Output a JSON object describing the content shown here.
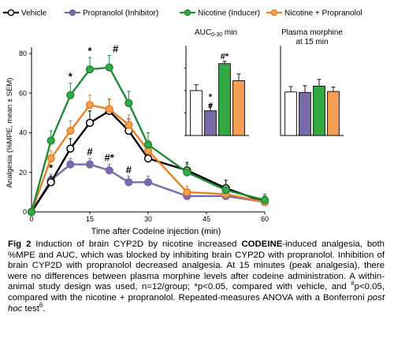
{
  "chart_data": [
    {
      "id": "main",
      "type": "line",
      "xlabel": "Time after Codeine injection (min)",
      "ylabel": "Analgesia (%MPE, mean ± SEM)",
      "xlim": [
        0,
        60
      ],
      "ylim": [
        0,
        80
      ],
      "xticks": [
        0,
        15,
        30,
        45,
        60
      ],
      "yticks": [
        0,
        20,
        40,
        60,
        80
      ],
      "grid": false,
      "legend_position": "top",
      "x": [
        0,
        5,
        10,
        15,
        20,
        25,
        30,
        40,
        50,
        60
      ],
      "series": [
        {
          "name": "Vehicle",
          "color": "#000000",
          "fill": "#ffffff",
          "values": [
            0,
            15,
            32,
            45,
            51,
            41,
            27,
            21,
            12,
            5
          ],
          "errors": [
            1,
            3,
            5,
            6,
            6,
            6,
            5,
            4,
            4,
            3
          ]
        },
        {
          "name": "Propranolol (Inhibitor)",
          "color": "#7a6ba8",
          "fill": "#7a6ba8",
          "values": [
            0,
            16,
            24,
            24,
            21,
            15,
            15,
            8,
            8,
            5
          ],
          "errors": [
            1,
            3,
            3,
            3,
            3,
            3,
            3,
            2,
            2,
            2
          ]
        },
        {
          "name": "Nicotine (Inducer)",
          "color": "#22893a",
          "fill": "#33aa44",
          "values": [
            0,
            36,
            59,
            72,
            73,
            55,
            34,
            20,
            11,
            6
          ],
          "errors": [
            1,
            5,
            6,
            6,
            6,
            6,
            6,
            4,
            3,
            3
          ]
        },
        {
          "name": "Nicotine + Propranolol",
          "color": "#e8822a",
          "fill": "#f0a050",
          "values": [
            0,
            27,
            41,
            54,
            52,
            44,
            31,
            10,
            9,
            5
          ],
          "errors": [
            1,
            4,
            5,
            5,
            5,
            5,
            5,
            3,
            3,
            2
          ]
        }
      ],
      "annotations": [
        {
          "series": "Nicotine (Inducer)",
          "x": 10,
          "text": "*"
        },
        {
          "series": "Nicotine (Inducer)",
          "x": 15,
          "text": "*"
        },
        {
          "series": "Nicotine (Inducer)",
          "x": 20,
          "text": "#"
        },
        {
          "series": "Propranolol (Inhibitor)",
          "x": 5,
          "text": "*"
        },
        {
          "series": "Propranolol (Inhibitor)",
          "x": 15,
          "text": "#"
        },
        {
          "series": "Propranolol (Inhibitor)",
          "x": 20,
          "text": "#*"
        },
        {
          "series": "Propranolol (Inhibitor)",
          "x": 25,
          "text": "#"
        }
      ]
    },
    {
      "id": "auc",
      "type": "bar",
      "title_main": "AUC",
      "title_sub": "0-30",
      "title_tail": " min",
      "categories": [
        "Vehicle",
        "Propranolol (Inhibitor)",
        "Nicotine (Inducer)",
        "Nicotine + Propranolol"
      ],
      "values": [
        1.0,
        0.55,
        1.6,
        1.22
      ],
      "errors": [
        0.13,
        0.13,
        0.05,
        0.15
      ],
      "colors": [
        "#ffffff",
        "#7a6ba8",
        "#33aa44",
        "#f0a050"
      ],
      "ylim": [
        0,
        2.0
      ],
      "yticks": [
        0,
        0.5,
        1.0,
        1.5
      ],
      "annotations": [
        {
          "bar": 1,
          "text": "*",
          "offset": 0
        },
        {
          "bar": 1,
          "text": "#",
          "offset": 1
        },
        {
          "bar": 2,
          "text": "#*",
          "offset": 0
        }
      ]
    },
    {
      "id": "plasma",
      "type": "bar",
      "title_line1": "Plasma morphine",
      "title_line2": "at 15 min",
      "categories": [
        "Vehicle",
        "Propranolol (Inhibitor)",
        "Nicotine (Inducer)",
        "Nicotine + Propranolol"
      ],
      "values": [
        0.97,
        0.96,
        1.1,
        0.98
      ],
      "errors": [
        0.12,
        0.15,
        0.15,
        0.1
      ],
      "colors": [
        "#ffffff",
        "#7a6ba8",
        "#33aa44",
        "#f0a050"
      ],
      "ylim": [
        0,
        2.0
      ]
    }
  ],
  "caption": {
    "label": "Fig 2",
    "part1": " Induction of brain CYP2D by nicotine increased ",
    "bold_word": "CODEINE",
    "part2": "-induced analgesia, both %MPE and AUC, which was blocked by inhibiting brain CYP2D with propranolol. Inhibition of brain CYP2D with propranolol decreased analgesia. At 15 minutes (peak analgesia), there were no differences between plasma morphine levels after codeine administration. A within-animal study design was used, n=12/group; *p<0.05, compared with vehicle, and ",
    "hash_sup": "#",
    "part3": "p<0.05, compared with the nicotine + propranolol. Repeated-measures ANOVA with a Bonferroni ",
    "italic": "post hoc",
    "part4": " test",
    "ref_sup": "6",
    "part5": "."
  }
}
